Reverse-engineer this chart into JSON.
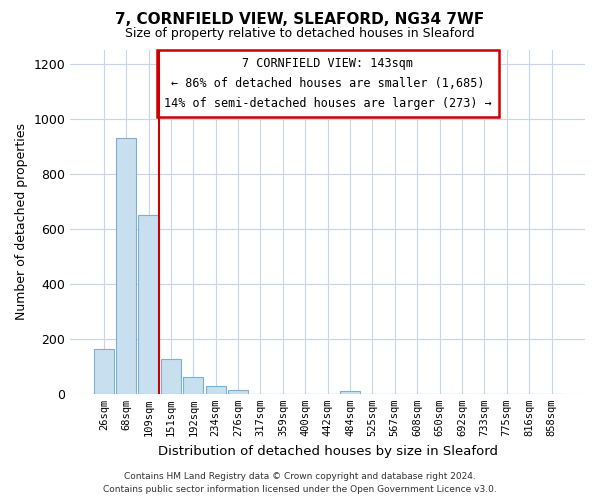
{
  "title": "7, CORNFIELD VIEW, SLEAFORD, NG34 7WF",
  "subtitle": "Size of property relative to detached houses in Sleaford",
  "xlabel": "Distribution of detached houses by size in Sleaford",
  "ylabel": "Number of detached properties",
  "bar_labels": [
    "26sqm",
    "68sqm",
    "109sqm",
    "151sqm",
    "192sqm",
    "234sqm",
    "276sqm",
    "317sqm",
    "359sqm",
    "400sqm",
    "442sqm",
    "484sqm",
    "525sqm",
    "567sqm",
    "608sqm",
    "650sqm",
    "692sqm",
    "733sqm",
    "775sqm",
    "816sqm",
    "858sqm"
  ],
  "bar_values": [
    163,
    930,
    651,
    128,
    62,
    30,
    13,
    0,
    0,
    0,
    0,
    12,
    0,
    0,
    0,
    0,
    0,
    0,
    0,
    0,
    0
  ],
  "bar_color": "#c8dff0",
  "bar_edge_color": "#7bafd4",
  "property_line_color": "#cc0000",
  "annotation_title": "7 CORNFIELD VIEW: 143sqm",
  "annotation_line1": "← 86% of detached houses are smaller (1,685)",
  "annotation_line2": "14% of semi-detached houses are larger (273) →",
  "annotation_box_facecolor": "white",
  "annotation_box_edgecolor": "#cc0000",
  "ylim": [
    0,
    1250
  ],
  "yticks": [
    0,
    200,
    400,
    600,
    800,
    1000,
    1200
  ],
  "footer_line1": "Contains HM Land Registry data © Crown copyright and database right 2024.",
  "footer_line2": "Contains public sector information licensed under the Open Government Licence v3.0.",
  "bg_color": "#ffffff",
  "grid_color": "#c8d4e8"
}
